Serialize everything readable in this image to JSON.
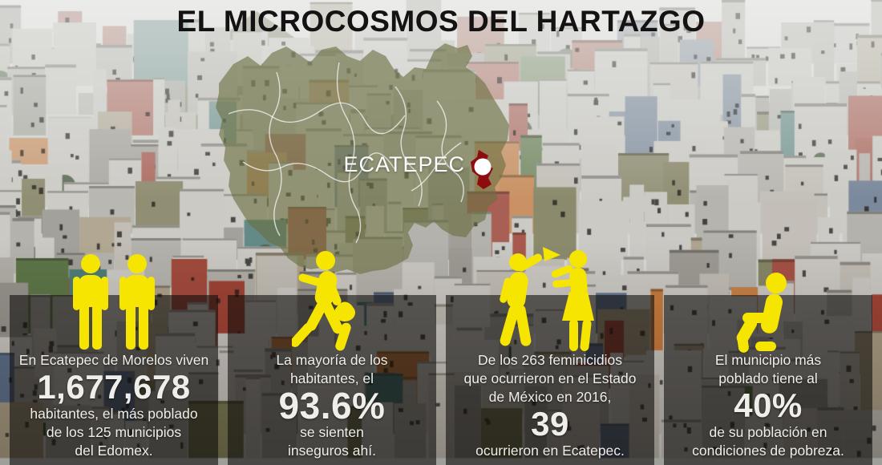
{
  "title": "EL MICROCOSMOS DEL HARTAZGO",
  "map": {
    "label": "ECATEPEC",
    "marker": "location-dot"
  },
  "colors": {
    "accent_yellow": "#F6E500",
    "highlight_red": "#8C0C10",
    "map_olive": "#6B7040",
    "marker_white": "#FFFFFF",
    "title_ink": "#141212",
    "panel_text": "#EFEEEA"
  },
  "panels": [
    {
      "icon": "two-people-icon",
      "before": "En Ecatepec de Morelos viven",
      "big": "1,677,678",
      "after": "habitantes, el más poblado\nde los 125 municipios\ndel Edomex."
    },
    {
      "icon": "fleeing-person-icon",
      "before": "La mayoría de los\nhabitantes, el",
      "big": "93.6%",
      "after": "se sienten\ninseguros ahí."
    },
    {
      "icon": "violence-icon",
      "before": "De los 263 feminicidios\nque ocurrieron en el Estado\nde México en 2016,",
      "big": "39",
      "after": "ocurrieron en Ecatepec."
    },
    {
      "icon": "sitting-person-icon",
      "before": "El municipio más\npoblado tiene al",
      "big": "40%",
      "after": "de su población en\ncondiciones de pobreza."
    }
  ]
}
